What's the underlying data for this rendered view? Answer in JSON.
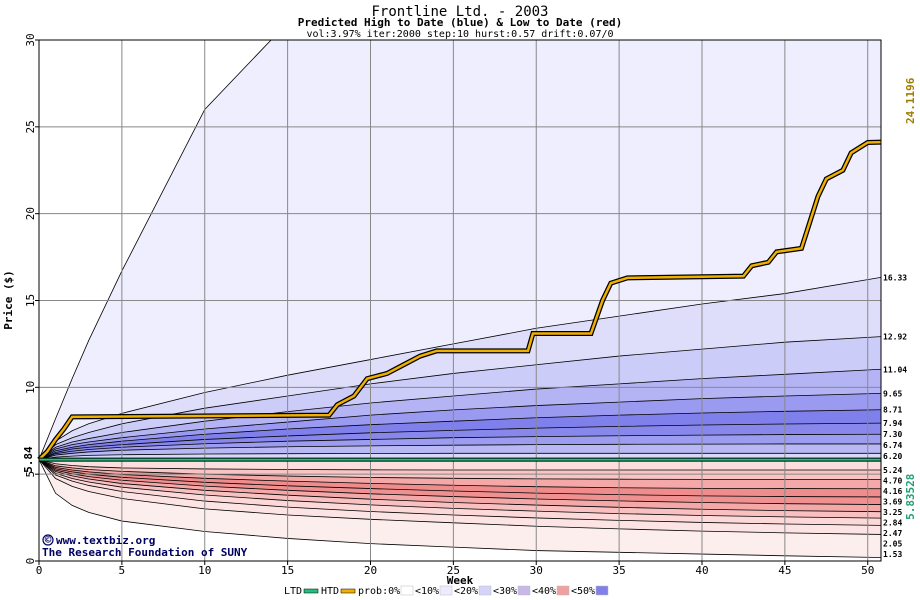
{
  "chart_data": {
    "type": "area",
    "title": "Frontline Ltd. - 2003",
    "subtitle": "Predicted High to Date (blue) &  Low to Date (red)",
    "params": "vol:3.97% iter:2000 step:10 hurst:0.57 drift:0.07/0",
    "xlabel": "Week",
    "ylabel": "Price ($)",
    "xlim": [
      0,
      50.8
    ],
    "ylim": [
      0,
      30
    ],
    "xticks": [
      0,
      5,
      10,
      15,
      20,
      25,
      30,
      35,
      40,
      45,
      50
    ],
    "yticks": [
      0,
      5,
      10,
      15,
      20,
      25,
      30
    ],
    "grid": true,
    "start_value": 5.84,
    "start_label": "5.84",
    "htd_last_label": "24.1196",
    "ltd_last_label": "5.83528",
    "right_labels": [
      "16.33",
      "12.92",
      "11.04",
      "9.65",
      "8.71",
      "7.94",
      "7.30",
      "6.74",
      "6.20",
      "5.24",
      "4.70",
      "4.16",
      "3.69",
      "3.25",
      "2.84",
      "2.47",
      "2.05",
      "1.53"
    ],
    "bands_high": {
      "x": [
        0,
        1,
        2,
        3,
        5,
        10,
        15,
        20,
        25,
        30,
        35,
        40,
        45,
        50.8
      ],
      "levels": [
        {
          "fill": "#eeeeff",
          "end": 30.0,
          "values": [
            5.84,
            8.2,
            10.5,
            12.7,
            16.7,
            26.0,
            31.0,
            31.0,
            31.0,
            31.0,
            31.0,
            31.0,
            31.0,
            31.0
          ]
        },
        {
          "fill": "#dedefa",
          "end": 16.33,
          "values": [
            5.84,
            6.9,
            7.5,
            7.9,
            8.5,
            9.7,
            10.7,
            11.6,
            12.5,
            13.4,
            14.1,
            14.8,
            15.4,
            16.33
          ]
        },
        {
          "fill": "#ccccf8",
          "end": 12.92,
          "values": [
            5.84,
            6.7,
            7.1,
            7.4,
            7.9,
            8.8,
            9.5,
            10.2,
            10.8,
            11.3,
            11.8,
            12.2,
            12.6,
            12.92
          ]
        },
        {
          "fill": "#b4b4f4",
          "end": 11.04,
          "values": [
            5.84,
            6.55,
            6.85,
            7.05,
            7.4,
            8.05,
            8.6,
            9.1,
            9.5,
            9.9,
            10.2,
            10.5,
            10.75,
            11.04
          ]
        },
        {
          "fill": "#9a9af0",
          "end": 9.65,
          "values": [
            5.84,
            6.45,
            6.7,
            6.85,
            7.1,
            7.6,
            8.0,
            8.4,
            8.7,
            8.95,
            9.15,
            9.35,
            9.5,
            9.65
          ]
        },
        {
          "fill": "#8080ec",
          "end": 8.71,
          "values": [
            5.84,
            6.35,
            6.55,
            6.7,
            6.9,
            7.3,
            7.6,
            7.85,
            8.05,
            8.25,
            8.4,
            8.52,
            8.62,
            8.71
          ]
        },
        {
          "fill": "#8888ec",
          "end": 7.94,
          "values": [
            5.84,
            6.25,
            6.45,
            6.55,
            6.7,
            7.0,
            7.2,
            7.38,
            7.52,
            7.65,
            7.75,
            7.83,
            7.89,
            7.94
          ]
        },
        {
          "fill": "#9c9cf0",
          "end": 7.3,
          "values": [
            5.84,
            6.18,
            6.32,
            6.42,
            6.55,
            6.75,
            6.9,
            7.0,
            7.1,
            7.16,
            7.21,
            7.25,
            7.28,
            7.3
          ]
        },
        {
          "fill": "#b8b8f4",
          "end": 6.74,
          "values": [
            5.84,
            6.1,
            6.2,
            6.28,
            6.38,
            6.5,
            6.58,
            6.63,
            6.67,
            6.7,
            6.72,
            6.73,
            6.74,
            6.74
          ]
        },
        {
          "fill": "#d8d8fa",
          "end": 6.2,
          "values": [
            5.84,
            5.98,
            6.04,
            6.08,
            6.12,
            6.16,
            6.18,
            6.19,
            6.2,
            6.2,
            6.2,
            6.2,
            6.2,
            6.2
          ]
        }
      ]
    },
    "bands_low": {
      "x": [
        0,
        1,
        2,
        3,
        5,
        10,
        15,
        20,
        25,
        30,
        35,
        40,
        45,
        50.8
      ],
      "levels": [
        {
          "fill": "#fdeeee",
          "end": 0.0,
          "values": [
            5.84,
            3.9,
            3.2,
            2.8,
            2.3,
            1.7,
            1.3,
            1.0,
            0.8,
            0.6,
            0.5,
            0.4,
            0.3,
            0.2
          ]
        },
        {
          "fill": "#fde4e4",
          "end": 1.53,
          "values": [
            5.84,
            4.75,
            4.3,
            4.0,
            3.6,
            3.0,
            2.65,
            2.4,
            2.2,
            2.0,
            1.85,
            1.72,
            1.62,
            1.53
          ]
        },
        {
          "fill": "#fcd8d8",
          "end": 2.05,
          "values": [
            5.84,
            4.95,
            4.6,
            4.35,
            4.0,
            3.45,
            3.1,
            2.85,
            2.65,
            2.48,
            2.34,
            2.22,
            2.13,
            2.05
          ]
        },
        {
          "fill": "#f8c0c0",
          "end": 2.47,
          "values": [
            5.84,
            5.05,
            4.75,
            4.55,
            4.25,
            3.8,
            3.48,
            3.23,
            3.03,
            2.87,
            2.73,
            2.62,
            2.54,
            2.47
          ]
        },
        {
          "fill": "#f4a8a8",
          "end": 2.84,
          "values": [
            5.84,
            5.15,
            4.9,
            4.72,
            4.46,
            4.07,
            3.79,
            3.56,
            3.37,
            3.22,
            3.09,
            2.98,
            2.9,
            2.84
          ]
        },
        {
          "fill": "#f09090",
          "end": 3.25,
          "values": [
            5.84,
            5.23,
            5.02,
            4.86,
            4.65,
            4.31,
            4.07,
            3.87,
            3.71,
            3.57,
            3.46,
            3.37,
            3.3,
            3.25
          ]
        },
        {
          "fill": "#f08c8c",
          "end": 3.69,
          "values": [
            5.84,
            5.31,
            5.13,
            5.0,
            4.82,
            4.53,
            4.33,
            4.17,
            4.03,
            3.91,
            3.82,
            3.75,
            3.71,
            3.69
          ]
        },
        {
          "fill": "#f4a8a8",
          "end": 4.16,
          "values": [
            5.84,
            5.39,
            5.24,
            5.13,
            4.98,
            4.76,
            4.6,
            4.47,
            4.36,
            4.28,
            4.22,
            4.18,
            4.17,
            4.16
          ]
        },
        {
          "fill": "#f8c4c4",
          "end": 4.7,
          "values": [
            5.84,
            5.48,
            5.36,
            5.27,
            5.16,
            5.0,
            4.89,
            4.81,
            4.76,
            4.73,
            4.71,
            4.7,
            4.7,
            4.7
          ]
        },
        {
          "fill": "#fcdede",
          "end": 5.24,
          "values": [
            5.84,
            5.6,
            5.5,
            5.43,
            5.36,
            5.3,
            5.27,
            5.25,
            5.24,
            5.24,
            5.24,
            5.24,
            5.24,
            5.24
          ]
        }
      ]
    },
    "series": [
      {
        "name": "HTD",
        "color": "#f0b000",
        "points": [
          [
            0,
            5.84
          ],
          [
            0.5,
            6.3
          ],
          [
            1,
            7.0
          ],
          [
            1.5,
            7.6
          ],
          [
            2,
            8.3
          ],
          [
            17.5,
            8.4
          ],
          [
            18,
            9.0
          ],
          [
            19,
            9.5
          ],
          [
            19.8,
            10.5
          ],
          [
            21,
            10.8
          ],
          [
            22,
            11.3
          ],
          [
            23,
            11.8
          ],
          [
            24,
            12.1
          ],
          [
            29.5,
            12.1
          ],
          [
            29.8,
            13.1
          ],
          [
            33.3,
            13.1
          ],
          [
            34,
            15.0
          ],
          [
            34.5,
            16.0
          ],
          [
            35.5,
            16.3
          ],
          [
            42.5,
            16.4
          ],
          [
            43,
            17.0
          ],
          [
            44,
            17.2
          ],
          [
            44.5,
            17.8
          ],
          [
            46,
            18.0
          ],
          [
            46.5,
            19.5
          ],
          [
            47,
            21.0
          ],
          [
            47.5,
            22.0
          ],
          [
            48.5,
            22.5
          ],
          [
            49,
            23.5
          ],
          [
            50,
            24.1
          ],
          [
            50.8,
            24.12
          ]
        ]
      },
      {
        "name": "LTD",
        "color": "#20c080",
        "points": [
          [
            0,
            5.84
          ],
          [
            50.8,
            5.84
          ]
        ]
      }
    ],
    "legend": {
      "items": [
        "LTD",
        "HTD",
        "prob:0%",
        "<10%",
        "<20%",
        "<30%",
        "<40%",
        "<50%"
      ],
      "colors": [
        "#20c080",
        "#f0b000",
        "#ffffff",
        "#ececff",
        "#d4d4f8",
        "#c8b8e8",
        "#f0a0a0",
        "#8080e8"
      ],
      "placement": "bottom"
    },
    "credits": [
      "www.textbiz.org",
      "The Research Foundation of SUNY"
    ],
    "copyright_symbol": "©"
  }
}
